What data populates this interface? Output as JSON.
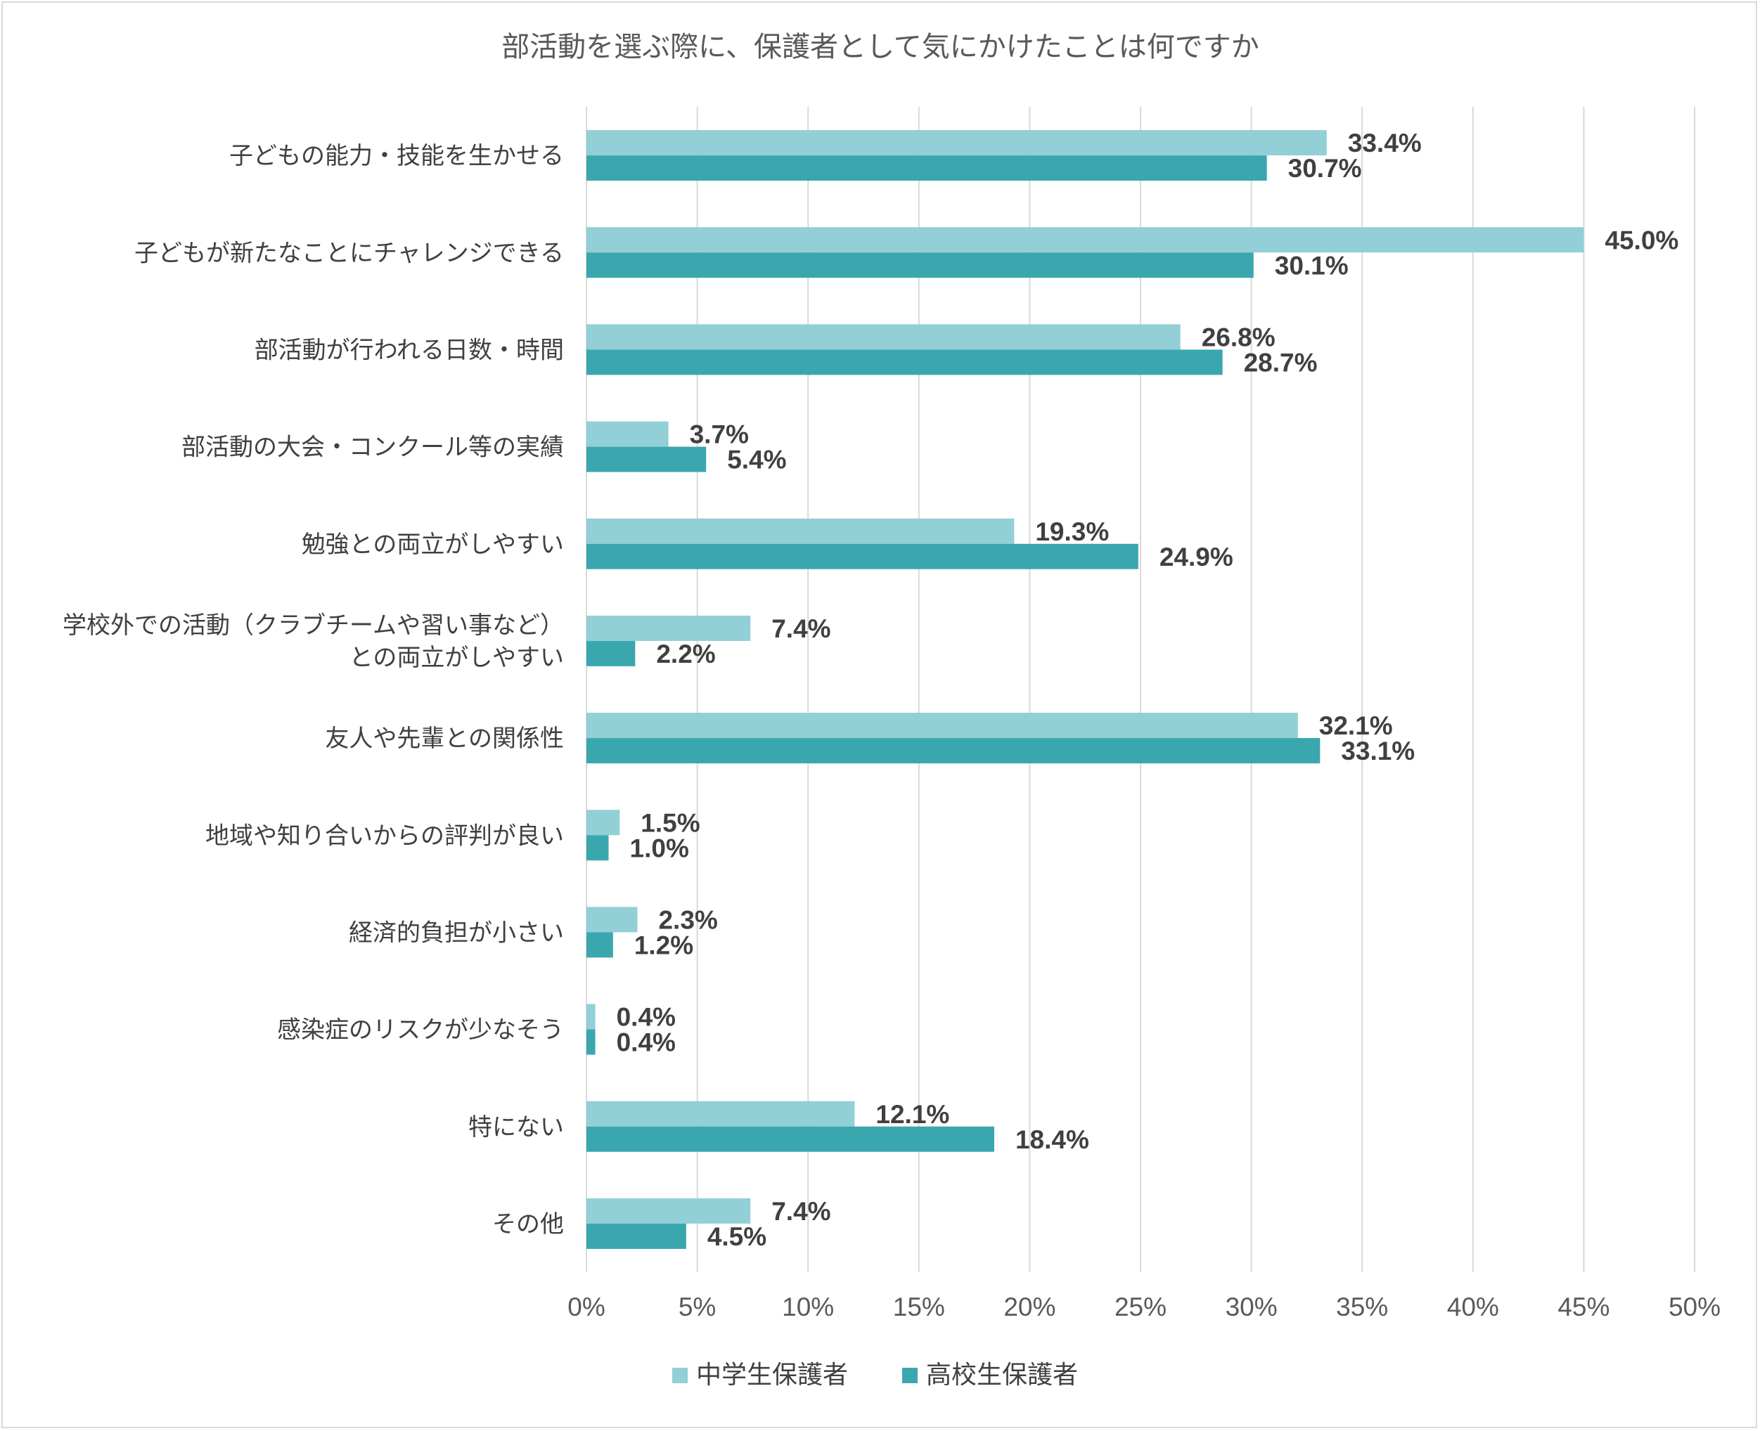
{
  "chart_data": {
    "type": "bar",
    "orientation": "horizontal",
    "title": "部活動を選ぶ際に、保護者として気にかけたことは何ですか",
    "categories": [
      [
        "子どもの能力・技能を生かせる"
      ],
      [
        "子どもが新たなことにチャレンジできる"
      ],
      [
        "部活動が行われる日数・時間"
      ],
      [
        "部活動の大会・コンクール等の実績"
      ],
      [
        "勉強との両立がしやすい"
      ],
      [
        "学校外での活動（クラブチームや習い事など）",
        "との両立がしやすい"
      ],
      [
        "友人や先輩との関係性"
      ],
      [
        "地域や知り合いからの評判が良い"
      ],
      [
        "経済的負担が小さい"
      ],
      [
        "感染症のリスクが少なそう"
      ],
      [
        "特にない"
      ],
      [
        "その他"
      ]
    ],
    "series": [
      {
        "name": "中学生保護者",
        "color": "#92cfd6",
        "values": [
          33.4,
          45.0,
          26.8,
          3.7,
          19.3,
          7.4,
          32.1,
          1.5,
          2.3,
          0.4,
          12.1,
          7.4
        ],
        "labels": [
          "33.4%",
          "45.0%",
          "26.8%",
          "3.7%",
          "19.3%",
          "7.4%",
          "32.1%",
          "1.5%",
          "2.3%",
          "0.4%",
          "12.1%",
          "7.4%"
        ]
      },
      {
        "name": "高校生保護者",
        "color": "#3aa7ae",
        "values": [
          30.7,
          30.1,
          28.7,
          5.4,
          24.9,
          2.2,
          33.1,
          1.0,
          1.2,
          0.4,
          18.4,
          4.5
        ],
        "labels": [
          "30.7%",
          "30.1%",
          "28.7%",
          "5.4%",
          "24.9%",
          "2.2%",
          "33.1%",
          "1.0%",
          "1.2%",
          "0.4%",
          "18.4%",
          "4.5%"
        ]
      }
    ],
    "xlim": [
      0,
      50
    ],
    "xticks": [
      0,
      5,
      10,
      15,
      20,
      25,
      30,
      35,
      40,
      45,
      50
    ],
    "xtick_labels": [
      "0%",
      "5%",
      "10%",
      "15%",
      "20%",
      "25%",
      "30%",
      "35%",
      "40%",
      "45%",
      "50%"
    ],
    "grid": true,
    "legend": "bottom"
  }
}
